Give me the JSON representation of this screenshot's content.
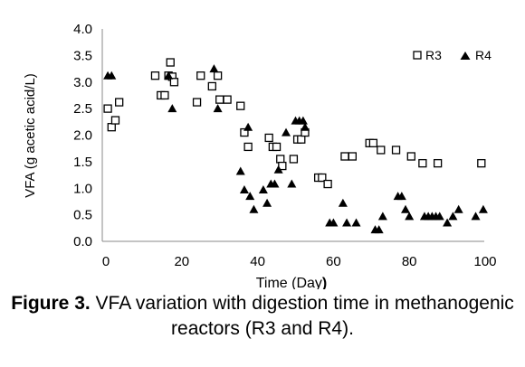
{
  "chart_data": {
    "type": "scatter",
    "xlabel_main": "Time (Day",
    "xlabel_paren": ")",
    "ylabel": "VFA (g acetic acid/L)",
    "xlim": [
      0,
      100
    ],
    "ylim": [
      0,
      4
    ],
    "xticks": [
      "0",
      "20",
      "40",
      "60",
      "80",
      "100"
    ],
    "xtick_values": [
      0,
      20,
      40,
      60,
      80,
      100
    ],
    "yticks": [
      "0.0",
      "0.5",
      "1.0",
      "1.5",
      "2.0",
      "2.5",
      "3.0",
      "3.5",
      "4.0"
    ],
    "ytick_values": [
      0,
      0.5,
      1,
      1.5,
      2,
      2.5,
      3,
      3.5,
      4
    ],
    "grid": false,
    "legend_position": "top-right",
    "series": [
      {
        "name": "R3",
        "marker": "open-square",
        "color": "#000000",
        "points": [
          [
            0.5,
            2.5
          ],
          [
            1.5,
            2.15
          ],
          [
            2.5,
            2.28
          ],
          [
            3.5,
            2.62
          ],
          [
            13,
            3.12
          ],
          [
            14.5,
            2.75
          ],
          [
            15.5,
            2.75
          ],
          [
            16.5,
            3.12
          ],
          [
            17,
            3.37
          ],
          [
            17.5,
            3.1
          ],
          [
            18,
            3.0
          ],
          [
            24,
            2.62
          ],
          [
            25,
            3.12
          ],
          [
            28,
            2.92
          ],
          [
            29.5,
            3.12
          ],
          [
            30,
            2.67
          ],
          [
            32,
            2.67
          ],
          [
            35.5,
            2.55
          ],
          [
            36.5,
            2.05
          ],
          [
            37.5,
            1.78
          ],
          [
            43,
            1.95
          ],
          [
            44,
            1.78
          ],
          [
            45,
            1.78
          ],
          [
            46,
            1.55
          ],
          [
            46.5,
            1.42
          ],
          [
            49.5,
            1.55
          ],
          [
            50.5,
            1.92
          ],
          [
            51.5,
            1.92
          ],
          [
            52.5,
            2.05
          ],
          [
            56,
            1.2
          ],
          [
            57,
            1.2
          ],
          [
            58.5,
            1.08
          ],
          [
            63,
            1.6
          ],
          [
            65,
            1.6
          ],
          [
            69.5,
            1.85
          ],
          [
            70.5,
            1.85
          ],
          [
            72.5,
            1.72
          ],
          [
            76.5,
            1.72
          ],
          [
            80.5,
            1.6
          ],
          [
            83.5,
            1.47
          ],
          [
            87.5,
            1.47
          ],
          [
            99,
            1.47
          ]
        ]
      },
      {
        "name": "R4",
        "marker": "filled-triangle",
        "color": "#000000",
        "points": [
          [
            0.5,
            3.12
          ],
          [
            1.5,
            3.12
          ],
          [
            16.5,
            3.12
          ],
          [
            17.5,
            2.5
          ],
          [
            28.5,
            3.25
          ],
          [
            29.5,
            2.5
          ],
          [
            35.5,
            1.32
          ],
          [
            36.5,
            0.97
          ],
          [
            37.5,
            2.15
          ],
          [
            38,
            0.85
          ],
          [
            39,
            0.6
          ],
          [
            41.5,
            0.97
          ],
          [
            42.5,
            0.72
          ],
          [
            43.5,
            1.08
          ],
          [
            44.5,
            1.08
          ],
          [
            45.5,
            1.35
          ],
          [
            47.5,
            2.05
          ],
          [
            49,
            1.08
          ],
          [
            50,
            2.27
          ],
          [
            51,
            2.27
          ],
          [
            52,
            2.27
          ],
          [
            52.5,
            2.15
          ],
          [
            59,
            0.35
          ],
          [
            60,
            0.35
          ],
          [
            62.5,
            0.72
          ],
          [
            63.5,
            0.35
          ],
          [
            66,
            0.35
          ],
          [
            71,
            0.22
          ],
          [
            72,
            0.22
          ],
          [
            73,
            0.47
          ],
          [
            77,
            0.85
          ],
          [
            78,
            0.85
          ],
          [
            79,
            0.6
          ],
          [
            80,
            0.47
          ],
          [
            84,
            0.47
          ],
          [
            85,
            0.47
          ],
          [
            86,
            0.47
          ],
          [
            87,
            0.47
          ],
          [
            88,
            0.47
          ],
          [
            90,
            0.35
          ],
          [
            91.5,
            0.47
          ],
          [
            93,
            0.6
          ],
          [
            97.5,
            0.47
          ],
          [
            99.5,
            0.6
          ]
        ]
      }
    ]
  },
  "caption": {
    "label": "Figure 3.",
    "text": " VFA variation with digestion time in methanogenic reactors (R3 and R4)."
  }
}
